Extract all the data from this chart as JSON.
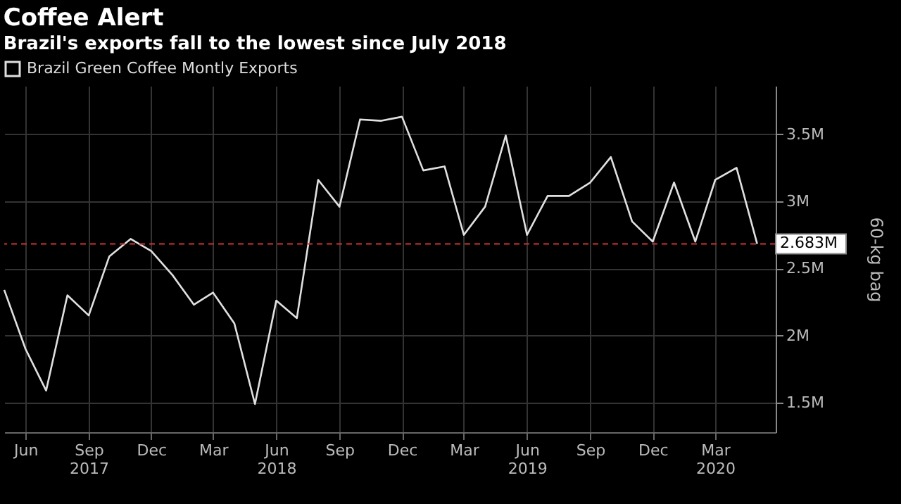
{
  "chart_data": {
    "type": "line",
    "title": "Coffee Alert",
    "subtitle": "Brazil's exports fall to the lowest since July 2018",
    "x": [
      "2017-05",
      "2017-06",
      "2017-07",
      "2017-08",
      "2017-09",
      "2017-10",
      "2017-11",
      "2017-12",
      "2018-01",
      "2018-02",
      "2018-03",
      "2018-04",
      "2018-05",
      "2018-06",
      "2018-07",
      "2018-08",
      "2018-09",
      "2018-10",
      "2018-11",
      "2018-12",
      "2019-01",
      "2019-02",
      "2019-03",
      "2019-04",
      "2019-05",
      "2019-06",
      "2019-07",
      "2019-08",
      "2019-09",
      "2019-10",
      "2019-11",
      "2019-12",
      "2020-01",
      "2020-02",
      "2020-03",
      "2020-04",
      "2020-05"
    ],
    "series": [
      {
        "name": "Brazil Green Coffee Montly Exports",
        "color": "#e0e0e0",
        "values": [
          2.34,
          1.9,
          1.59,
          2.3,
          2.15,
          2.59,
          2.72,
          2.63,
          2.45,
          2.23,
          2.32,
          2.09,
          1.49,
          2.26,
          2.13,
          3.16,
          2.96,
          3.61,
          3.6,
          3.63,
          3.23,
          3.26,
          2.75,
          2.96,
          3.49,
          2.75,
          3.04,
          3.04,
          3.14,
          3.33,
          2.85,
          2.7,
          3.14,
          2.7,
          3.16,
          3.25,
          2.683
        ]
      }
    ],
    "xlim": [
      "2017-05-01",
      "2020-05-28"
    ],
    "xticks": [
      {
        "value": "2017-06",
        "label": "Jun"
      },
      {
        "value": "2017-09",
        "label": "Sep\n2017"
      },
      {
        "value": "2017-12",
        "label": "Dec"
      },
      {
        "value": "2018-03",
        "label": "Mar"
      },
      {
        "value": "2018-06",
        "label": "Jun\n2018"
      },
      {
        "value": "2018-09",
        "label": "Sep"
      },
      {
        "value": "2018-12",
        "label": "Dec"
      },
      {
        "value": "2019-03",
        "label": "Mar"
      },
      {
        "value": "2019-06",
        "label": "Jun\n2019"
      },
      {
        "value": "2019-09",
        "label": "Sep"
      },
      {
        "value": "2019-12",
        "label": "Dec"
      },
      {
        "value": "2020-03",
        "label": "Mar\n2020"
      }
    ],
    "ylim": [
      1.28,
      3.86
    ],
    "yticks": [
      {
        "value": 1.5,
        "label": "1.5M"
      },
      {
        "value": 2,
        "label": "2M"
      },
      {
        "value": 2.5,
        "label": "2.5M"
      },
      {
        "value": 3,
        "label": "3M"
      },
      {
        "value": 3.5,
        "label": "3.5M"
      }
    ],
    "ylabel": "60-kg bag",
    "ref_lines": [
      {
        "axis": "y",
        "value": 2.683,
        "label": "2.683M",
        "color": "#cc3333",
        "line_style": "dashed"
      }
    ],
    "grid": true,
    "legend": "top left",
    "marker": "none",
    "line_style": "solid"
  }
}
